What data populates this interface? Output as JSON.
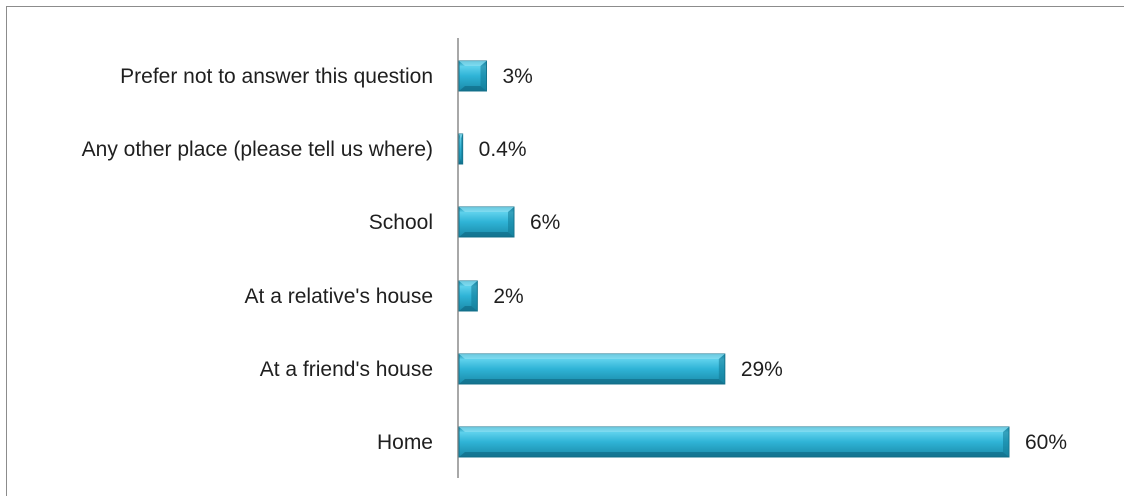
{
  "chart_data": {
    "type": "bar",
    "orientation": "horizontal",
    "categories": [
      "Home",
      "At a friend's house",
      "At a relative's house",
      "School",
      "Any other place (please tell us where)",
      "Prefer not to answer this question"
    ],
    "values": [
      60,
      29,
      2,
      6,
      0.4,
      3
    ],
    "value_labels": [
      "60%",
      "29%",
      "2%",
      "6%",
      "0.4%",
      "3%"
    ],
    "unit": "%",
    "xlim": [
      0,
      60
    ],
    "grid": false,
    "legend": "none",
    "bar_color": "#2fb3d6",
    "bar_edge_color": "#17738c",
    "axis_color": "#8c8c8c"
  }
}
